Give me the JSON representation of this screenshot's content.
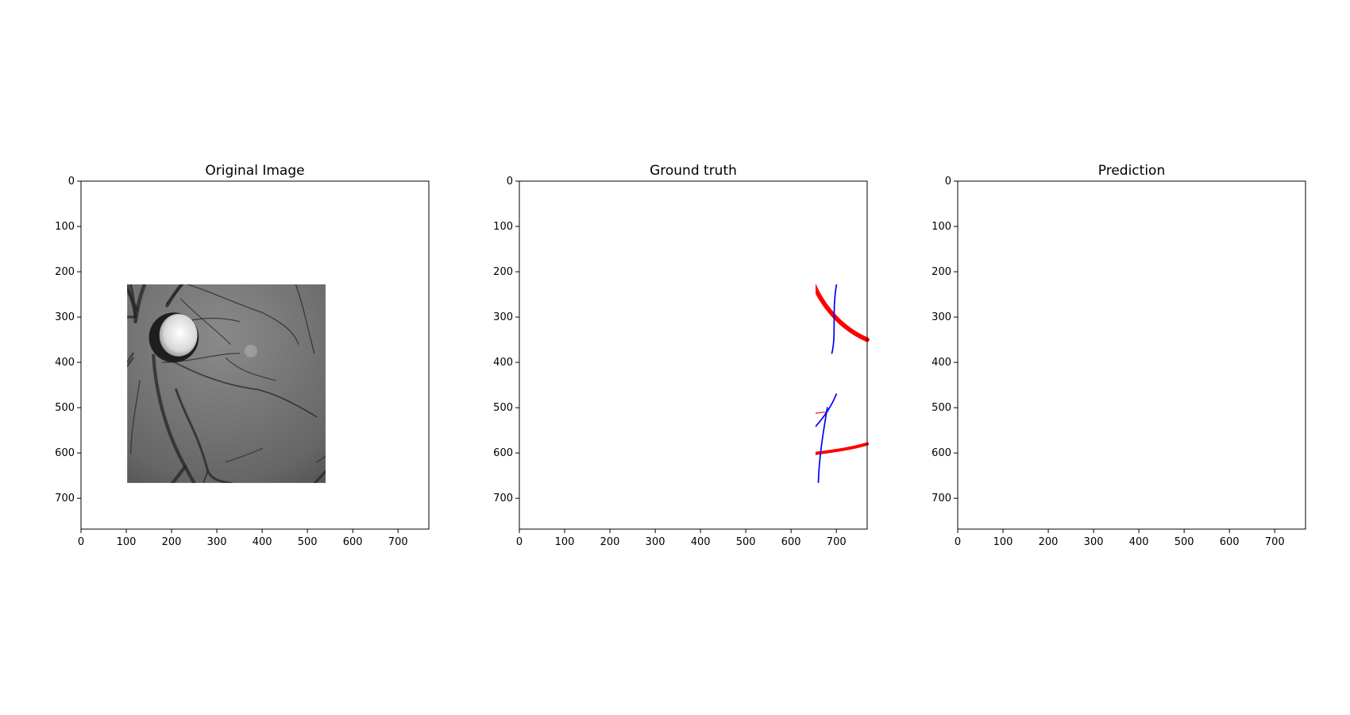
{
  "chart_data": [
    {
      "type": "image",
      "title": "Original Image",
      "xlim": [
        0,
        768
      ],
      "ylim": [
        768,
        0
      ],
      "xticks": [
        0,
        100,
        200,
        300,
        400,
        500,
        600,
        700
      ],
      "yticks": [
        0,
        100,
        200,
        300,
        400,
        500,
        600,
        700
      ],
      "colormap": "gray"
    },
    {
      "type": "image",
      "title": "Ground truth",
      "xlim": [
        0,
        768
      ],
      "ylim": [
        768,
        0
      ],
      "xticks": [
        0,
        100,
        200,
        300,
        400,
        500,
        600,
        700
      ],
      "yticks": [
        0,
        100,
        200,
        300,
        400,
        500,
        600,
        700
      ],
      "colors": {
        "artery": "#ff0000",
        "vein": "#0000ff",
        "background": "#ffffff"
      }
    },
    {
      "type": "image",
      "title": "Prediction",
      "xlim": [
        0,
        768
      ],
      "ylim": [
        768,
        0
      ],
      "xticks": [
        0,
        100,
        200,
        300,
        400,
        500,
        600,
        700
      ],
      "yticks": [
        0,
        100,
        200,
        300,
        400,
        500,
        600,
        700
      ],
      "colors": {
        "artery": "#ff0000",
        "vein": "#0000ff",
        "background": "#ffffff"
      }
    }
  ]
}
